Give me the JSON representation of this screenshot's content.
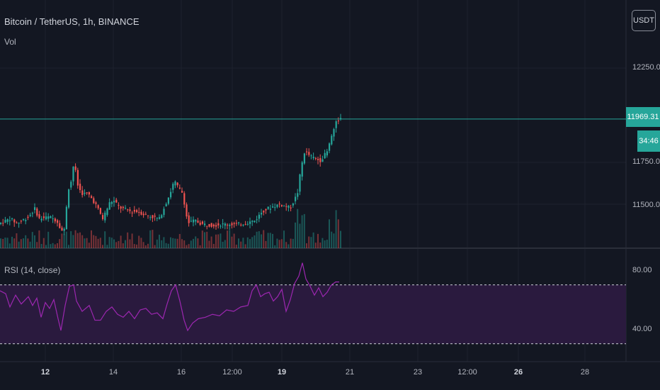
{
  "header": {
    "title": "Bitcoin / TetherUS, 1h, BINANCE",
    "volume_label": "Vol",
    "currency_button": "USDT"
  },
  "indicator": {
    "rsi_label": "RSI (14, close)"
  },
  "price_axis": {
    "ticks": [
      "12250.00",
      "11750.00",
      "11500.00"
    ],
    "current_price": "11969.31",
    "countdown": "34:46"
  },
  "rsi_axis": {
    "ticks": [
      "80.00",
      "40.00"
    ]
  },
  "time_axis": {
    "ticks": [
      "12",
      "14",
      "16",
      "12:00",
      "19",
      "21",
      "23",
      "12:00",
      "26",
      "28"
    ]
  },
  "colors": {
    "background": "#131722",
    "up": "#26a69a",
    "down": "#ef5350",
    "rsi_line": "#9c27b0",
    "rsi_band": "#2a1a3e",
    "grid": "#1e222d"
  },
  "chart_data": {
    "type": "candlestick",
    "symbol": "BTCUSDT",
    "interval": "1h",
    "current_price": 11969.31,
    "price_range": [
      11400,
      12450
    ],
    "rsi_range": [
      30,
      90
    ],
    "rsi_bands": [
      70,
      30
    ],
    "points": [
      [
        0,
        11395
      ],
      [
        14,
        11420
      ],
      [
        24,
        11395
      ],
      [
        40,
        11430
      ],
      [
        50,
        11480
      ],
      [
        54,
        11420
      ],
      [
        70,
        11430
      ],
      [
        80,
        11410
      ],
      [
        90,
        11335
      ],
      [
        96,
        11580
      ],
      [
        100,
        11620
      ],
      [
        105,
        11750
      ],
      [
        108,
        11620
      ],
      [
        115,
        11560
      ],
      [
        125,
        11555
      ],
      [
        135,
        11500
      ],
      [
        145,
        11420
      ],
      [
        155,
        11510
      ],
      [
        160,
        11520
      ],
      [
        170,
        11480
      ],
      [
        185,
        11460
      ],
      [
        195,
        11460
      ],
      [
        205,
        11440
      ],
      [
        215,
        11430
      ],
      [
        225,
        11420
      ],
      [
        240,
        11560
      ],
      [
        246,
        11630
      ],
      [
        250,
        11600
      ],
      [
        258,
        11560
      ],
      [
        265,
        11395
      ],
      [
        275,
        11410
      ],
      [
        285,
        11390
      ],
      [
        300,
        11385
      ],
      [
        320,
        11390
      ],
      [
        340,
        11390
      ],
      [
        360,
        11410
      ],
      [
        370,
        11460
      ],
      [
        380,
        11480
      ],
      [
        395,
        11500
      ],
      [
        410,
        11480
      ],
      [
        420,
        11560
      ],
      [
        425,
        11700
      ],
      [
        430,
        11790
      ],
      [
        440,
        11760
      ],
      [
        452,
        11740
      ],
      [
        462,
        11790
      ],
      [
        468,
        11880
      ],
      [
        474,
        11950
      ],
      [
        479,
        11970
      ]
    ],
    "rsi_points": [
      [
        0,
        66
      ],
      [
        8,
        64
      ],
      [
        14,
        55
      ],
      [
        22,
        63
      ],
      [
        30,
        57
      ],
      [
        40,
        62
      ],
      [
        46,
        56
      ],
      [
        52,
        61
      ],
      [
        58,
        48
      ],
      [
        64,
        58
      ],
      [
        70,
        54
      ],
      [
        76,
        60
      ],
      [
        82,
        47
      ],
      [
        86,
        39
      ],
      [
        92,
        56
      ],
      [
        98,
        69
      ],
      [
        104,
        70
      ],
      [
        108,
        59
      ],
      [
        116,
        52
      ],
      [
        126,
        56
      ],
      [
        134,
        46
      ],
      [
        142,
        46
      ],
      [
        150,
        52
      ],
      [
        158,
        55
      ],
      [
        166,
        50
      ],
      [
        174,
        48
      ],
      [
        182,
        52
      ],
      [
        190,
        47
      ],
      [
        198,
        53
      ],
      [
        206,
        54
      ],
      [
        214,
        50
      ],
      [
        222,
        51
      ],
      [
        230,
        47
      ],
      [
        236,
        57
      ],
      [
        242,
        66
      ],
      [
        248,
        70
      ],
      [
        254,
        59
      ],
      [
        260,
        46
      ],
      [
        265,
        39
      ],
      [
        272,
        44
      ],
      [
        280,
        47
      ],
      [
        290,
        48
      ],
      [
        300,
        50
      ],
      [
        310,
        49
      ],
      [
        320,
        53
      ],
      [
        330,
        52
      ],
      [
        340,
        55
      ],
      [
        350,
        56
      ],
      [
        356,
        66
      ],
      [
        362,
        70
      ],
      [
        368,
        62
      ],
      [
        374,
        64
      ],
      [
        380,
        65
      ],
      [
        386,
        59
      ],
      [
        392,
        62
      ],
      [
        398,
        67
      ],
      [
        404,
        52
      ],
      [
        410,
        60
      ],
      [
        416,
        71
      ],
      [
        422,
        76
      ],
      [
        427,
        85
      ],
      [
        432,
        74
      ],
      [
        438,
        69
      ],
      [
        444,
        63
      ],
      [
        450,
        68
      ],
      [
        456,
        62
      ],
      [
        462,
        65
      ],
      [
        468,
        70
      ],
      [
        474,
        72
      ],
      [
        479,
        72
      ]
    ]
  }
}
